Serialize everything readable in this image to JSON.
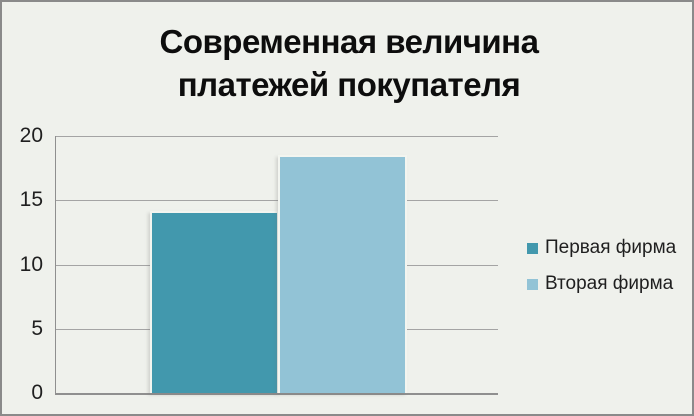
{
  "chart_data": {
    "type": "bar",
    "title": "Современная величина платежей покупателя",
    "categories": [
      "Первая фирма",
      "Вторая фирма"
    ],
    "series": [
      {
        "name": "Первая фирма",
        "value": 14.2,
        "color": "#4298ad"
      },
      {
        "name": "Вторая фирма",
        "value": 18.5,
        "color": "#92c3d6"
      }
    ],
    "xlabel": "",
    "ylabel": "",
    "ylim": [
      0,
      20
    ],
    "yticks": [
      0,
      5,
      10,
      15,
      20
    ],
    "grid": true,
    "legend_position": "right"
  },
  "colors": {
    "background": "#eff1ec",
    "frame_border": "#8a8a8a",
    "gridline": "#a4a4a4",
    "axis_line": "#8f8f8f",
    "bar_edge": "#f3f5f0",
    "text": "#1f1f1f"
  }
}
